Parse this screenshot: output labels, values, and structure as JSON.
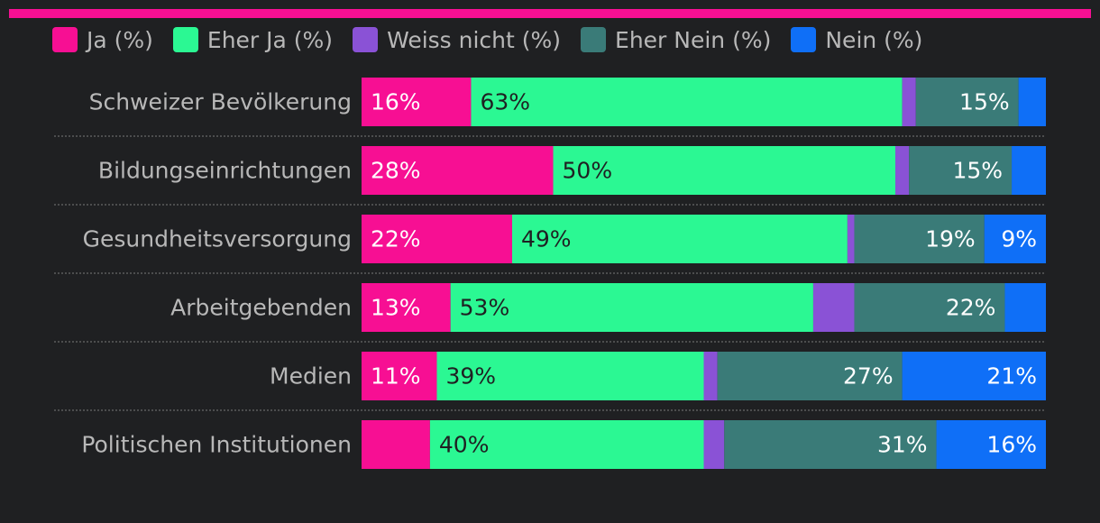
{
  "chart_data": {
    "type": "bar",
    "orientation": "horizontal",
    "stacked": true,
    "normalized_to": 100,
    "title": "",
    "xlabel": "",
    "ylabel": "",
    "legend_position": "top-left",
    "categories": [
      "Schweizer Bevölkerung",
      "Bildungseinrichtungen",
      "Gesundheitsversorgung",
      "Arbeitgebenden",
      "Medien",
      "Politischen Institutionen"
    ],
    "series": [
      {
        "name": "Ja (%)",
        "color": "#f70f93",
        "label_color": "#ffffff",
        "values": [
          16,
          28,
          22,
          13,
          11,
          10
        ],
        "data_labels": [
          "16%",
          "28%",
          "22%",
          "13%",
          "11%",
          ""
        ]
      },
      {
        "name": "Eher Ja (%)",
        "color": "#2bf893",
        "label_color": "#1f2022",
        "values": [
          63,
          50,
          49,
          53,
          39,
          40
        ],
        "data_labels": [
          "63%",
          "50%",
          "49%",
          "53%",
          "39%",
          "40%"
        ]
      },
      {
        "name": "Weiss nicht (%)",
        "color": "#8a52d6",
        "label_color": "#ffffff",
        "values": [
          2,
          2,
          1,
          6,
          2,
          3
        ],
        "data_labels": [
          "",
          "",
          "",
          "",
          "",
          ""
        ]
      },
      {
        "name": "Eher Nein (%)",
        "color": "#3a7b78",
        "label_color": "#ffffff",
        "values": [
          15,
          15,
          19,
          22,
          27,
          31
        ],
        "data_labels": [
          "15%",
          "15%",
          "19%",
          "22%",
          "27%",
          "31%"
        ]
      },
      {
        "name": "Nein (%)",
        "color": "#0f6ff7",
        "label_color": "#ffffff",
        "values": [
          4,
          5,
          9,
          6,
          21,
          16
        ],
        "data_labels": [
          "",
          "",
          "9%",
          "",
          "21%",
          "16%"
        ]
      }
    ]
  }
}
